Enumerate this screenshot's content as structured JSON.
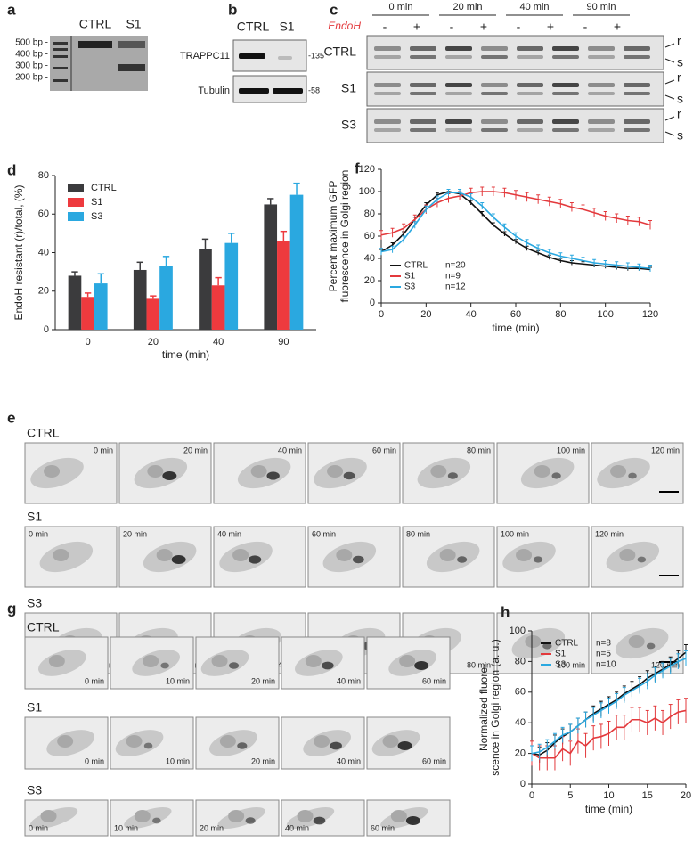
{
  "panel_a": {
    "letter": "a",
    "markers": [
      "500 bp -",
      "400 bp -",
      "300 bp -",
      "200 bp -"
    ],
    "lanes": [
      "CTRL",
      "S1"
    ]
  },
  "panel_b": {
    "letter": "b",
    "lanes": [
      "CTRL",
      "S1"
    ],
    "rows": [
      "TRAPPC11",
      "Tubulin"
    ],
    "sizes": [
      "-135",
      "-58"
    ]
  },
  "panel_c": {
    "letter": "c",
    "times": [
      "0 min",
      "20 min",
      "40 min",
      "90 min"
    ],
    "treatment": "EndoH",
    "signs": [
      "-",
      "+"
    ],
    "rows": [
      "CTRL",
      "S1",
      "S3"
    ],
    "bands": [
      "r",
      "s"
    ]
  },
  "panel_e": {
    "letter": "e",
    "rows": [
      "CTRL",
      "S1",
      "S3"
    ],
    "times": [
      "0 min",
      "20 min",
      "40 min",
      "60 min",
      "80 min",
      "100 min",
      "120 min"
    ]
  },
  "panel_g": {
    "letter": "g",
    "rows": [
      "CTRL",
      "S1",
      "S3"
    ],
    "times": [
      "0 min",
      "10 min",
      "20 min",
      "40 min",
      "60 min"
    ]
  },
  "chart_data": [
    {
      "type": "bar",
      "letter": "d",
      "ylabel": [
        "EndoH resistant (r)/total, (%)"
      ],
      "xlabel": "time (min)",
      "categories": [
        "0",
        "20",
        "40",
        "90"
      ],
      "ylim": [
        0,
        80
      ],
      "yticks": [
        0,
        20,
        40,
        60,
        80
      ],
      "legend": "upper left",
      "series": [
        {
          "name": "CTRL",
          "color": "#3b3b3d",
          "values": [
            28,
            31,
            42,
            65
          ],
          "errors": [
            2,
            4,
            5,
            3
          ]
        },
        {
          "name": "S1",
          "color": "#ee3a3e",
          "values": [
            17,
            16,
            23,
            46
          ],
          "errors": [
            2,
            1.5,
            4,
            5
          ]
        },
        {
          "name": "S3",
          "color": "#2aa8e0",
          "values": [
            24,
            33,
            45,
            70
          ],
          "errors": [
            5,
            5,
            5,
            6
          ]
        }
      ]
    },
    {
      "type": "line",
      "letter": "f",
      "ylabel": [
        "Percent maximum GFP",
        "fluorescence in Golgi region"
      ],
      "xlabel": "time (min)",
      "x": [
        0,
        5,
        10,
        15,
        20,
        25,
        30,
        35,
        40,
        45,
        50,
        55,
        60,
        65,
        70,
        75,
        80,
        85,
        90,
        95,
        100,
        105,
        110,
        115,
        120
      ],
      "xlim": [
        0,
        120
      ],
      "xticks": [
        0,
        20,
        40,
        60,
        80,
        100,
        120
      ],
      "ylim": [
        0,
        120
      ],
      "yticks": [
        0,
        20,
        40,
        60,
        80,
        100,
        120
      ],
      "legend": "lower left",
      "series": [
        {
          "name": "CTRL",
          "n": "n=20",
          "color": "#111111",
          "values": [
            46,
            52,
            62,
            75,
            88,
            97,
            100,
            98,
            90,
            80,
            70,
            62,
            55,
            49,
            45,
            41,
            38,
            36,
            35,
            34,
            33,
            32,
            31,
            31,
            30
          ],
          "errors": [
            2,
            2,
            2,
            2,
            2,
            2,
            2,
            2,
            2,
            2,
            2,
            2,
            2,
            2,
            2,
            2,
            2,
            2,
            2,
            2,
            2,
            2,
            2,
            2,
            2
          ]
        },
        {
          "name": "S1",
          "n": "n=9",
          "color": "#e3393c",
          "values": [
            61,
            63,
            67,
            75,
            84,
            90,
            94,
            96,
            99,
            100,
            100,
            99,
            97,
            95,
            93,
            91,
            89,
            86,
            84,
            81,
            78,
            76,
            74,
            73,
            70
          ],
          "errors": [
            4,
            4,
            4,
            4,
            4,
            4,
            4,
            4,
            4,
            4,
            4,
            4,
            4,
            4,
            4,
            4,
            4,
            4,
            4,
            4,
            4,
            4,
            4,
            4,
            4
          ]
        },
        {
          "name": "S3",
          "n": "n=12",
          "color": "#2aa8e0",
          "values": [
            46,
            48,
            57,
            70,
            84,
            93,
            99,
            99,
            95,
            87,
            77,
            68,
            60,
            54,
            49,
            45,
            42,
            40,
            38,
            36,
            35,
            34,
            33,
            32,
            31
          ],
          "errors": [
            3,
            3,
            3,
            3,
            3,
            3,
            3,
            3,
            3,
            3,
            3,
            3,
            3,
            3,
            3,
            3,
            3,
            3,
            3,
            3,
            3,
            3,
            3,
            3,
            3
          ]
        }
      ]
    },
    {
      "type": "line",
      "letter": "h",
      "ylabel": [
        "Normalized fluore-",
        "scence in Golgi region (a. u.)"
      ],
      "xlabel": "time (min)",
      "x": [
        0,
        1,
        2,
        3,
        4,
        5,
        6,
        7,
        8,
        9,
        10,
        11,
        12,
        13,
        14,
        15,
        16,
        17,
        18,
        19,
        20
      ],
      "xlim": [
        0,
        20
      ],
      "xticks": [
        0,
        5,
        10,
        15,
        20
      ],
      "ylim": [
        0,
        100
      ],
      "yticks": [
        0,
        20,
        40,
        60,
        80,
        100
      ],
      "legend": "upper left",
      "series": [
        {
          "name": "CTRL",
          "n": "n=8",
          "color": "#111111",
          "values": [
            20,
            19,
            22,
            27,
            31,
            34,
            38,
            42,
            46,
            49,
            52,
            55,
            59,
            62,
            65,
            69,
            72,
            75,
            78,
            82,
            86
          ],
          "errors": [
            5,
            5,
            5,
            5,
            5,
            5,
            5,
            5,
            5,
            5,
            5,
            5,
            5,
            5,
            5,
            5,
            5,
            5,
            5,
            5,
            5
          ]
        },
        {
          "name": "S1",
          "n": "n=5",
          "color": "#e3393c",
          "values": [
            20,
            17,
            17,
            17,
            23,
            20,
            28,
            25,
            30,
            31,
            33,
            37,
            37,
            42,
            42,
            40,
            43,
            40,
            44,
            47,
            48
          ],
          "errors": [
            8,
            8,
            8,
            8,
            8,
            8,
            8,
            8,
            8,
            8,
            8,
            8,
            8,
            8,
            8,
            8,
            8,
            8,
            8,
            8,
            8
          ]
        },
        {
          "name": "S3",
          "n": "n=10",
          "color": "#2aa8e0",
          "values": [
            20,
            21,
            24,
            28,
            32,
            34,
            38,
            42,
            45,
            48,
            51,
            54,
            58,
            61,
            64,
            67,
            71,
            74,
            77,
            80,
            82
          ],
          "errors": [
            5,
            5,
            5,
            5,
            5,
            5,
            5,
            5,
            5,
            5,
            5,
            5,
            5,
            5,
            5,
            5,
            5,
            5,
            5,
            5,
            5
          ]
        }
      ]
    }
  ]
}
